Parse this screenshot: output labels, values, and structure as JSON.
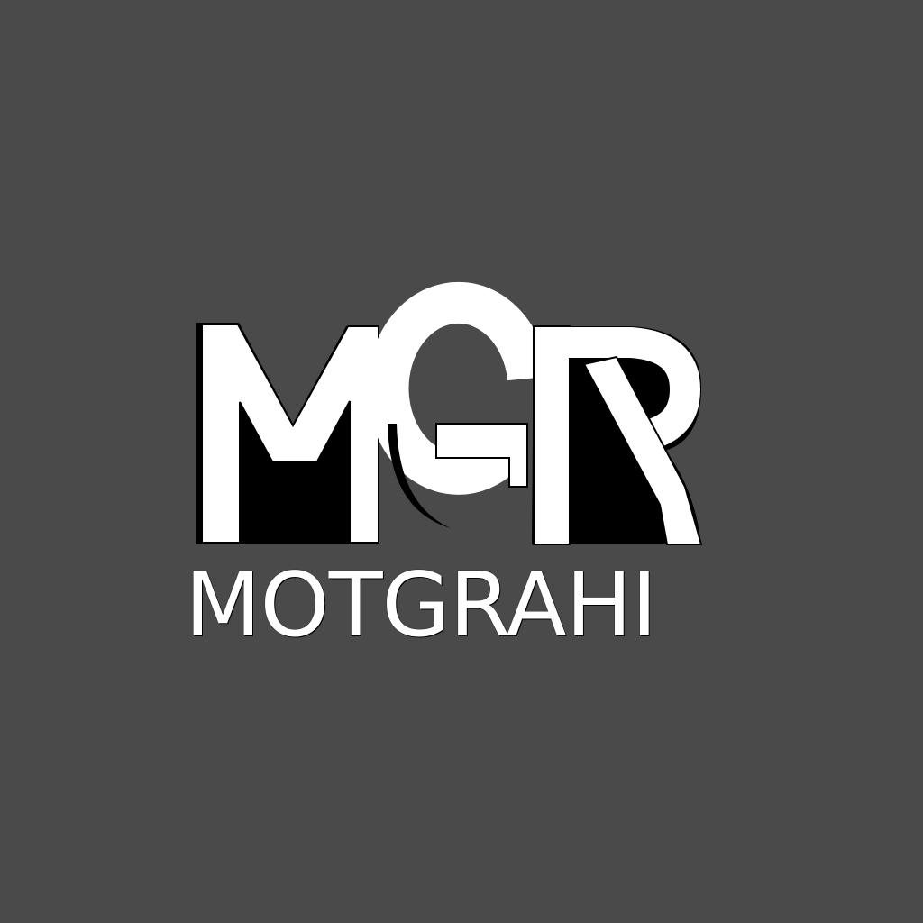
{
  "logo": {
    "monogram": "MGR",
    "wordmark": "MOTGRAHI"
  },
  "colors": {
    "background": "#4a4a4b",
    "letter_fill": "#ffffff",
    "letter_shadow": "#000000"
  },
  "icons": [
    "monogram-logo"
  ]
}
